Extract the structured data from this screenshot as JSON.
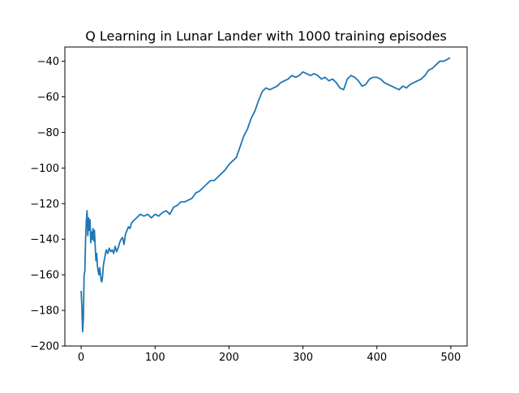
{
  "chart_data": {
    "type": "line",
    "title": "Q Learning in Lunar Lander with 1000 training episodes",
    "xlabel": "",
    "ylabel": "",
    "xlim": [
      -22,
      522
    ],
    "ylim": [
      -200,
      -32
    ],
    "xticks": [
      0,
      100,
      200,
      300,
      400,
      500
    ],
    "yticks": [
      -200,
      -180,
      -160,
      -140,
      -120,
      -100,
      -80,
      -60,
      -40
    ],
    "xtick_labels": [
      "0",
      "100",
      "200",
      "300",
      "400",
      "500"
    ],
    "ytick_labels": [
      "−200",
      "−180",
      "−160",
      "−140",
      "−120",
      "−100",
      "−80",
      "−60",
      "−40"
    ],
    "grid": false,
    "series": [
      {
        "name": "",
        "color": "#1f77b4",
        "x": [
          0,
          1,
          2,
          3,
          4,
          5,
          6,
          7,
          8,
          9,
          10,
          11,
          12,
          13,
          14,
          15,
          16,
          17,
          18,
          19,
          20,
          21,
          22,
          23,
          24,
          25,
          26,
          27,
          28,
          29,
          30,
          32,
          34,
          36,
          38,
          40,
          42,
          44,
          46,
          48,
          50,
          52,
          54,
          56,
          58,
          60,
          62,
          64,
          66,
          68,
          70,
          75,
          80,
          85,
          90,
          95,
          100,
          105,
          110,
          115,
          120,
          125,
          130,
          135,
          140,
          145,
          150,
          155,
          160,
          165,
          170,
          175,
          180,
          185,
          190,
          195,
          200,
          205,
          210,
          215,
          220,
          225,
          230,
          235,
          240,
          245,
          250,
          255,
          260,
          265,
          270,
          275,
          280,
          285,
          290,
          295,
          300,
          305,
          310,
          315,
          320,
          325,
          330,
          335,
          340,
          345,
          350,
          355,
          360,
          365,
          370,
          375,
          380,
          385,
          390,
          395,
          400,
          405,
          410,
          415,
          420,
          425,
          430,
          435,
          440,
          445,
          450,
          455,
          460,
          465,
          470,
          475,
          480,
          485,
          490,
          495,
          499
        ],
        "y": [
          -169,
          -178,
          -192,
          -185,
          -160,
          -158,
          -140,
          -130,
          -124,
          -138,
          -128,
          -135,
          -129,
          -142,
          -136,
          -140,
          -134,
          -141,
          -135,
          -144,
          -152,
          -148,
          -155,
          -158,
          -160,
          -156,
          -159,
          -163,
          -164,
          -161,
          -155,
          -150,
          -146,
          -148,
          -145,
          -147,
          -146,
          -148,
          -144,
          -147,
          -145,
          -142,
          -140,
          -139,
          -143,
          -137,
          -135,
          -133,
          -134,
          -131,
          -130,
          -128,
          -126,
          -127,
          -126,
          -128,
          -126,
          -127,
          -125,
          -124,
          -126,
          -122,
          -121,
          -119,
          -119,
          -118,
          -117,
          -114,
          -113,
          -111,
          -109,
          -107,
          -107,
          -105,
          -103,
          -101,
          -98,
          -96,
          -94,
          -88,
          -82,
          -78,
          -72,
          -68,
          -62,
          -57,
          -55,
          -56,
          -55,
          -54,
          -52,
          -51,
          -50,
          -48,
          -49,
          -48,
          -46,
          -47,
          -48,
          -47,
          -48,
          -50,
          -49,
          -51,
          -50,
          -52,
          -55,
          -56,
          -50,
          -48,
          -49,
          -51,
          -54,
          -53,
          -50,
          -49,
          -49,
          -50,
          -52,
          -53,
          -54,
          -55,
          -56,
          -54,
          -55,
          -53,
          -52,
          -51,
          -50,
          -48,
          -45,
          -44,
          -42,
          -40,
          -40,
          -39,
          -38
        ]
      }
    ]
  }
}
